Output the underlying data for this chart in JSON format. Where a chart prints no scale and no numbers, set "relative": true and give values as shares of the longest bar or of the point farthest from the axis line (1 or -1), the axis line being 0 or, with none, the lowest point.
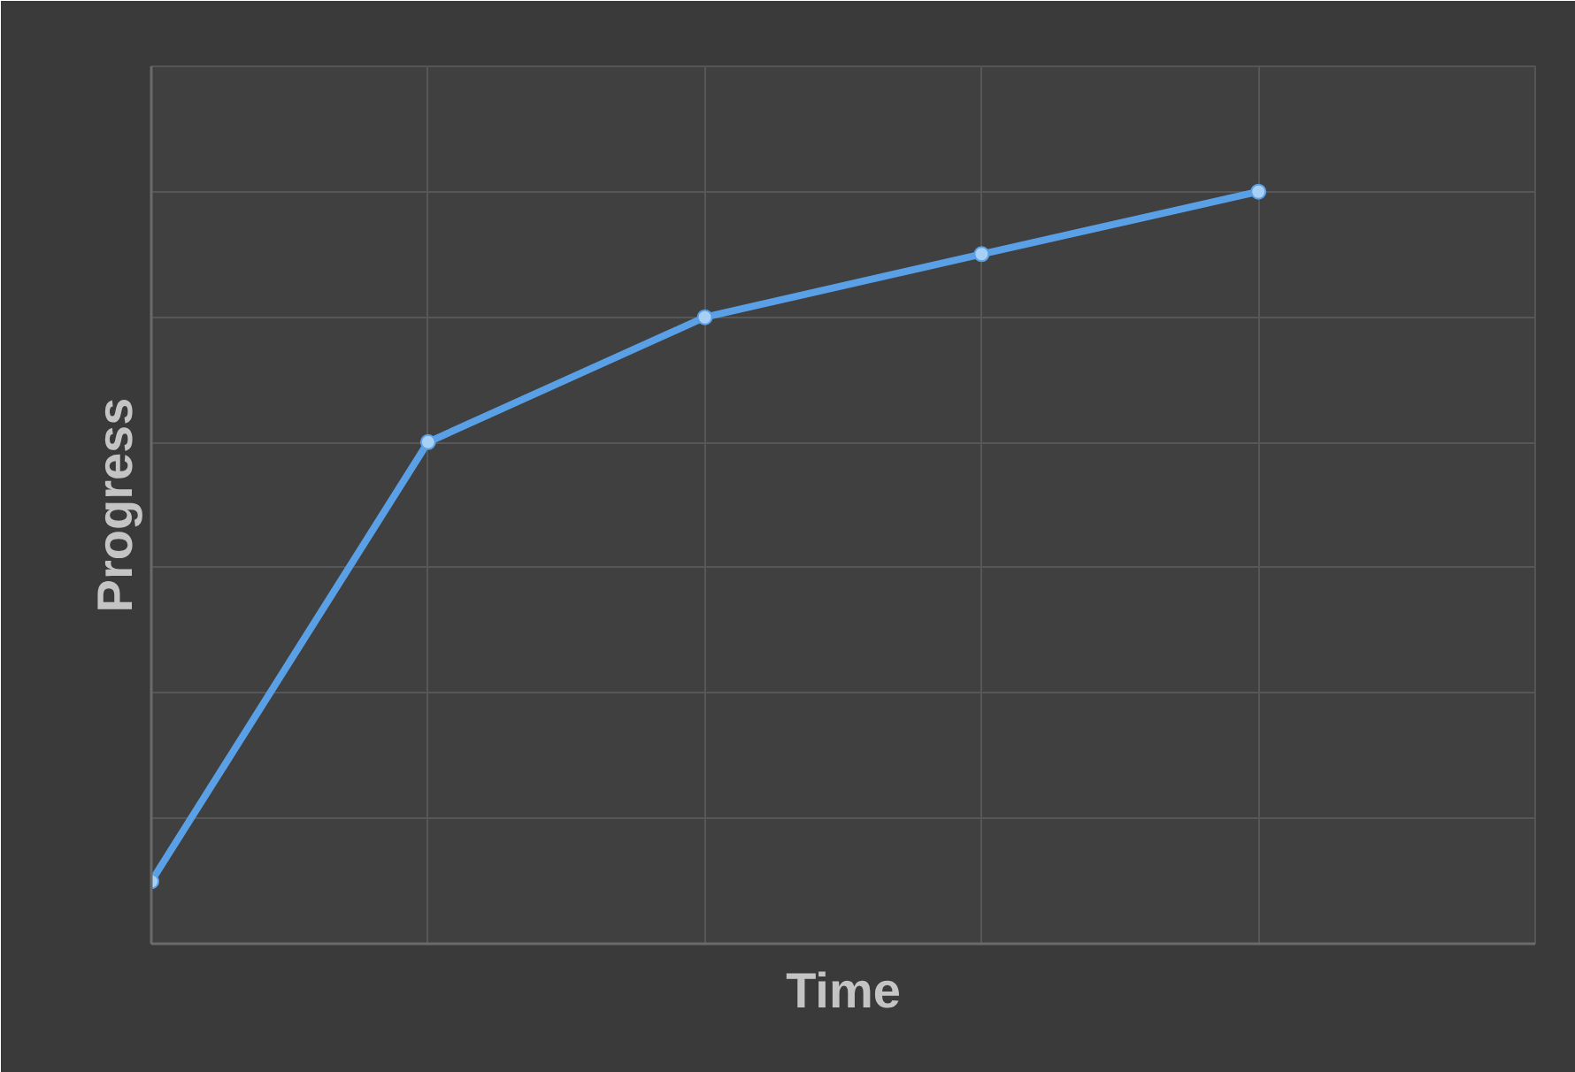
{
  "chart_data": {
    "type": "line",
    "xlabel": "Time",
    "ylabel": "Progress",
    "relative": true,
    "categories": [
      null,
      null,
      null,
      null,
      null,
      null
    ],
    "series": [
      {
        "color": "#5aa0e6",
        "values": [
          0.083,
          0.667,
          0.833,
          0.917,
          1,
          null
        ]
      }
    ],
    "grid": true,
    "marker": "circle",
    "line_style": "solid"
  }
}
